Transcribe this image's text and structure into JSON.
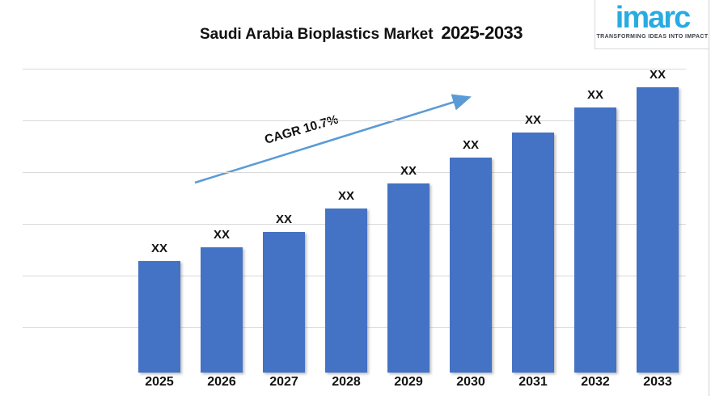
{
  "title": {
    "main": "Saudi Arabia Bioplastics Market",
    "range": "2025-2033"
  },
  "logo": {
    "wordmark": "imarc",
    "tagline": "TRANSFORMING IDEAS INTO IMPACT",
    "brand_color": "#29ABE2"
  },
  "chart_data": {
    "type": "bar",
    "title": "Saudi Arabia Bioplastics Market 2025-2033",
    "xlabel": "",
    "ylabel": "",
    "categories": [
      "2025",
      "2026",
      "2027",
      "2028",
      "2029",
      "2030",
      "2031",
      "2032",
      "2033"
    ],
    "value_labels": [
      "XX",
      "XX",
      "XX",
      "XX",
      "XX",
      "XX",
      "XX",
      "XX",
      "XX"
    ],
    "relative_values": [
      138,
      155,
      174,
      203,
      234,
      266,
      297,
      328,
      353
    ],
    "values_masked": true,
    "grid": true,
    "legend": false,
    "bar_color": "#4472C4",
    "gridline_color": "#D9D9D9",
    "annotation": {
      "text": "CAGR 10.7%",
      "arrow_color": "#5B9BD5"
    }
  }
}
